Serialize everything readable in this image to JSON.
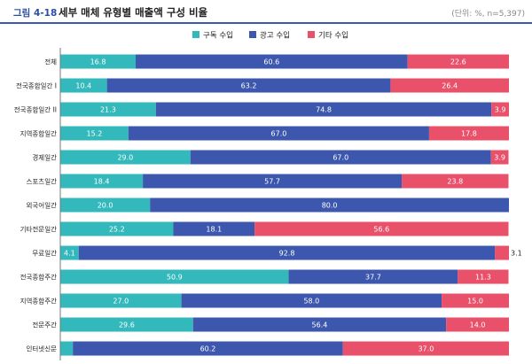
{
  "header": {
    "figure_number": "그림 4-18",
    "title": "세부 매체 유형별 매출액 구성 비율",
    "unit_note": "(단위: %, n=5,397)"
  },
  "chart_data": {
    "type": "bar",
    "orientation": "horizontal",
    "stacked": true,
    "categories": [
      "전체",
      "전국종합일간 I",
      "전국종합일간 II",
      "지역종합일간",
      "경제일간",
      "스포츠일간",
      "외국어일간",
      "기타전문일간",
      "무료일간",
      "전국종합주간",
      "지역종합주간",
      "전문주간",
      "인터넷신문"
    ],
    "series": [
      {
        "name": "구독 수입",
        "color": "#33b8bb",
        "values": [
          16.8,
          10.4,
          21.3,
          15.2,
          29.0,
          18.4,
          20.0,
          25.2,
          4.1,
          50.9,
          27.0,
          29.6,
          2.8
        ]
      },
      {
        "name": "광고 수입",
        "color": "#3c57ad",
        "values": [
          60.6,
          63.2,
          74.8,
          67.0,
          67.0,
          57.7,
          80.0,
          18.1,
          92.8,
          37.7,
          58.0,
          56.4,
          60.2
        ]
      },
      {
        "name": "기타 수입",
        "color": "#e9506a",
        "values": [
          22.6,
          26.4,
          3.9,
          17.8,
          3.9,
          23.8,
          null,
          56.6,
          3.1,
          11.3,
          15.0,
          14.0,
          37.0
        ]
      }
    ],
    "xlim": [
      0,
      100
    ],
    "legend_position": "top-center",
    "grid": false
  }
}
